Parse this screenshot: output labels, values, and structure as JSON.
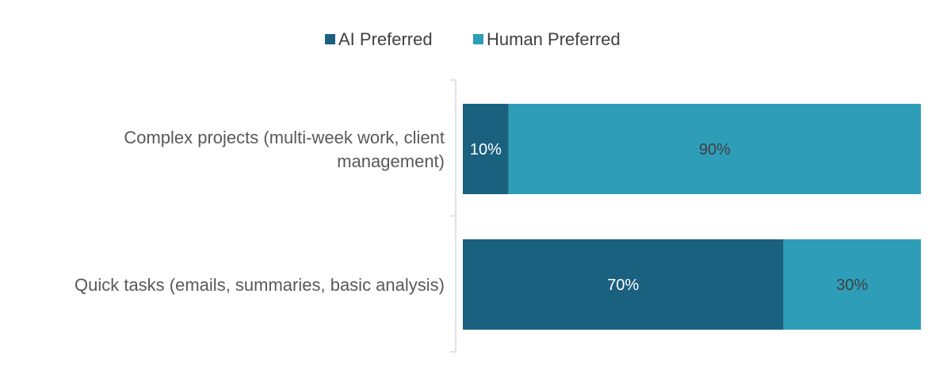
{
  "chart_data": {
    "type": "bar",
    "orientation": "horizontal",
    "stacked": "percent",
    "categories": [
      [
        "Complex projects (multi-week work, client",
        "management)"
      ],
      [
        "Quick tasks (emails, summaries, basic analysis)"
      ]
    ],
    "series": [
      {
        "name": "AI Preferred",
        "color": "#1a607f",
        "label_color": "#ffffff",
        "values": [
          10,
          70
        ],
        "labels": [
          "10%",
          "70%"
        ]
      },
      {
        "name": "Human Preferred",
        "color": "#2e9db8",
        "label_color": "#404040",
        "values": [
          90,
          30
        ],
        "labels": [
          "90%",
          "30%"
        ]
      }
    ],
    "xlim": [
      0,
      100
    ],
    "legend_position": "top",
    "grid": false,
    "value_axis_visible": false
  }
}
